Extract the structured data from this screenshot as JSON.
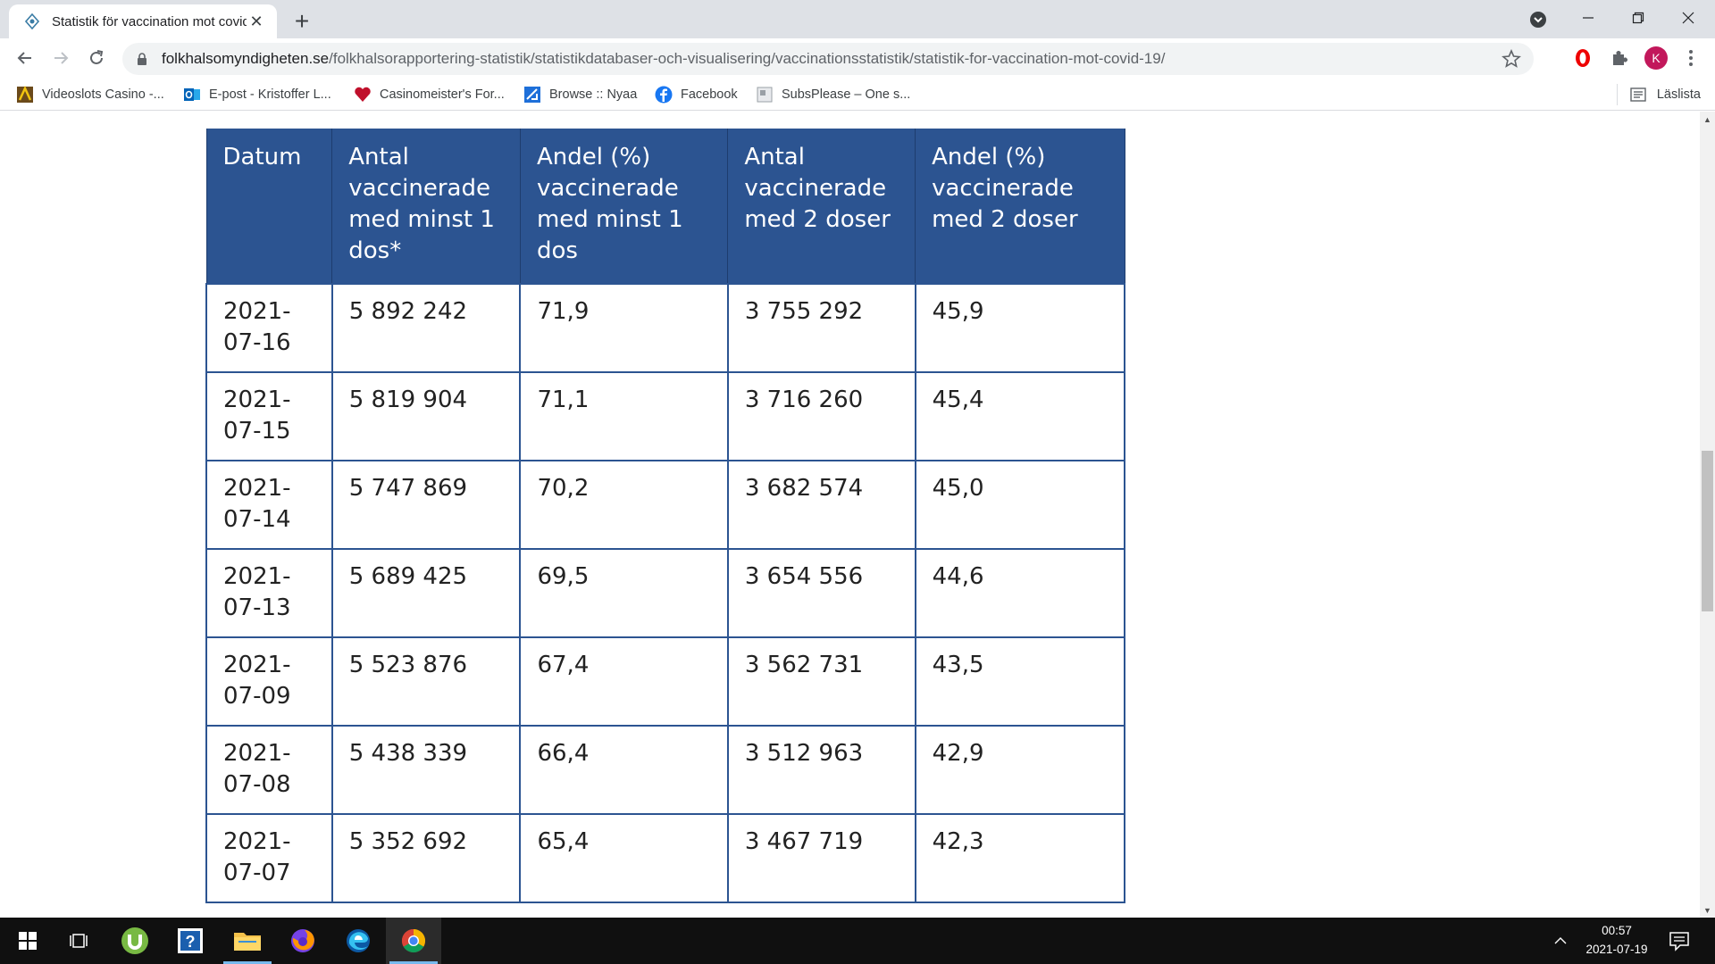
{
  "browser": {
    "tab_title": "Statistik för vaccination mot covid",
    "url_host": "folkhalsomyndigheten.se",
    "url_path": "/folkhalsorapportering-statistik/statistikdatabaser-och-visualisering/vaccinationsstatistik/statistik-for-vaccination-mot-covid-19/",
    "profile_initial": "K"
  },
  "bookmarks": [
    {
      "label": "Videoslots Casino -...",
      "icon": "videoslots-icon"
    },
    {
      "label": "E-post - Kristoffer L...",
      "icon": "outlook-icon"
    },
    {
      "label": "Casinomeister's For...",
      "icon": "heart-icon"
    },
    {
      "label": "Browse :: Nyaa",
      "icon": "nyaa-icon"
    },
    {
      "label": "Facebook",
      "icon": "facebook-icon"
    },
    {
      "label": "SubsPlease – One s...",
      "icon": "subsplease-icon"
    }
  ],
  "reading_list_label": "Läslista",
  "table": {
    "headers": [
      "Datum",
      "Antal vaccinerade med minst 1 dos*",
      "Andel (%) vaccinerade med minst 1 dos",
      "Antal vaccinerade med 2 doser",
      "Andel (%) vaccinerade med 2 doser"
    ],
    "rows": [
      [
        "2021-07-16",
        "5 892 242",
        "71,9",
        "3 755 292",
        "45,9"
      ],
      [
        "2021-07-15",
        "5 819 904",
        "71,1",
        "3 716 260",
        "45,4"
      ],
      [
        "2021-07-14",
        "5 747 869",
        "70,2",
        "3 682 574",
        "45,0"
      ],
      [
        "2021-07-13",
        "5 689 425",
        "69,5",
        "3 654 556",
        "44,6"
      ],
      [
        "2021-07-09",
        "5 523 876",
        "67,4",
        "3 562 731",
        "43,5"
      ],
      [
        "2021-07-08",
        "5 438 339",
        "66,4",
        "3 512 963",
        "42,9"
      ],
      [
        "2021-07-07",
        "5 352 692",
        "65,4",
        "3 467 719",
        "42,3"
      ]
    ]
  },
  "taskbar": {
    "clock_time": "00:57",
    "clock_date": "2021-07-19"
  },
  "colors": {
    "table_header_bg": "#2c5491",
    "table_border": "#2c5491"
  }
}
